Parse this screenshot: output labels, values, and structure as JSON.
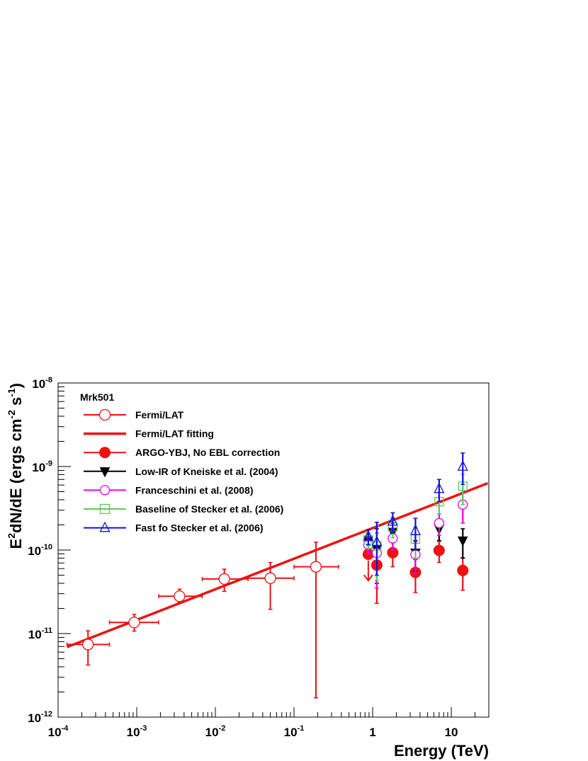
{
  "chart_data": {
    "type": "scatter",
    "title": "",
    "xlabel": "Energy (TeV)",
    "ylabel": {
      "pre": "E",
      "sup1": "2",
      "mid": "dN/dE (ergs cm",
      "sup2": "-2",
      "mid2": " s",
      "sup3": "-1",
      "post": ")"
    },
    "x_scale": "log",
    "y_scale": "log",
    "xlim": [
      0.0001,
      30
    ],
    "ylim": [
      1e-12,
      1e-08
    ],
    "x_ticks": [
      {
        "value": 0.0001,
        "base": "10",
        "exp": "-4"
      },
      {
        "value": 0.001,
        "base": "10",
        "exp": "-3"
      },
      {
        "value": 0.01,
        "base": "10",
        "exp": "-2"
      },
      {
        "value": 0.1,
        "base": "10",
        "exp": "-1"
      },
      {
        "value": 1,
        "base": "1",
        "exp": ""
      },
      {
        "value": 10,
        "base": "10",
        "exp": ""
      }
    ],
    "y_ticks": [
      {
        "value": 1e-12,
        "base": "10",
        "exp": "-12"
      },
      {
        "value": 1e-11,
        "base": "10",
        "exp": "-11"
      },
      {
        "value": 1e-10,
        "base": "10",
        "exp": "-10"
      },
      {
        "value": 1e-09,
        "base": "10",
        "exp": "-9"
      },
      {
        "value": 1e-08,
        "base": "10",
        "exp": "-8"
      }
    ],
    "legend_title": "Mrk501",
    "legend_position": "top-left",
    "grid": false,
    "series": [
      {
        "name": "Fermi/LAT",
        "style": "open-circle",
        "color": "#ee1111",
        "points": [
          {
            "x": 0.00024,
            "y": 7.4e-12,
            "xlo": 0.00013,
            "xhi": 0.00045,
            "ylo": 4.2e-12,
            "yhi": 1.08e-11
          },
          {
            "x": 0.00093,
            "y": 1.36e-11,
            "xlo": 0.00045,
            "xhi": 0.0019,
            "ylo": 1.07e-11,
            "yhi": 1.7e-11
          },
          {
            "x": 0.0035,
            "y": 2.8e-11,
            "xlo": 0.0019,
            "xhi": 0.0068,
            "ylo": 2.38e-11,
            "yhi": 3.4e-11
          },
          {
            "x": 0.013,
            "y": 4.5e-11,
            "xlo": 0.0068,
            "xhi": 0.026,
            "ylo": 3.2e-11,
            "yhi": 5.9e-11
          },
          {
            "x": 0.05,
            "y": 4.6e-11,
            "xlo": 0.026,
            "xhi": 0.1,
            "ylo": 1.95e-11,
            "yhi": 7.1e-11
          },
          {
            "x": 0.19,
            "y": 6.3e-11,
            "xlo": 0.1,
            "xhi": 0.37,
            "ylo": 1.7e-12,
            "yhi": 1.24e-10
          }
        ]
      },
      {
        "name": "Fermi/LAT fitting",
        "style": "line",
        "color": "#ee1111",
        "line": [
          {
            "x": 0.00013,
            "y": 6.9e-12
          },
          {
            "x": 29,
            "y": 6.3e-10
          }
        ]
      },
      {
        "name": "ARGO-YBJ, No EBL correction",
        "style": "filled-circle",
        "color": "#ee1111",
        "points": [
          {
            "x": 0.88,
            "y": 8.9e-11,
            "upper_limit": 7.5e-11,
            "upper_limit_to": 4.3e-11
          },
          {
            "x": 1.13,
            "y": 6.6e-11,
            "ylo": 2.3e-11,
            "yhi": 1.05e-10
          },
          {
            "x": 1.8,
            "y": 9.3e-11,
            "ylo": 6.3e-11,
            "yhi": 1.23e-10
          },
          {
            "x": 3.5,
            "y": 5.4e-11,
            "ylo": 3.1e-11,
            "yhi": 7.7e-11
          },
          {
            "x": 7,
            "y": 9.9e-11,
            "ylo": 7.1e-11,
            "yhi": 1.27e-10
          },
          {
            "x": 14,
            "y": 5.7e-11,
            "ylo": 3.3e-11,
            "yhi": 8.1e-11
          }
        ]
      },
      {
        "name": "Low-IR of Kneiske et al. (2004)",
        "style": "filled-triangle-down",
        "color": "#000000",
        "points": [
          {
            "x": 0.88,
            "y": 1.3e-10,
            "ylo": 1.05e-10,
            "yhi": 1.55e-10
          },
          {
            "x": 1.13,
            "y": 1.03e-10,
            "ylo": 4e-11,
            "yhi": 1.8e-10
          },
          {
            "x": 1.8,
            "y": 1.65e-10,
            "ylo": 1.22e-10,
            "yhi": 2.1e-10
          },
          {
            "x": 3.5,
            "y": 9.3e-11,
            "ylo": 5.6e-11,
            "yhi": 1.3e-10
          },
          {
            "x": 7,
            "y": 1.8e-10,
            "ylo": 1.3e-10,
            "yhi": 2.35e-10
          },
          {
            "x": 14,
            "y": 1.3e-10,
            "ylo": 8e-11,
            "yhi": 1.8e-10
          }
        ]
      },
      {
        "name": "Franceschini et al. (2008)",
        "style": "open-circle",
        "color": "#ee00ee",
        "points": [
          {
            "x": 0.88,
            "y": 1.15e-10,
            "ylo": 9e-11,
            "yhi": 1.4e-10
          },
          {
            "x": 1.13,
            "y": 9.2e-11,
            "ylo": 3.5e-11,
            "yhi": 1.6e-10
          },
          {
            "x": 1.8,
            "y": 1.38e-10,
            "ylo": 1e-10,
            "yhi": 1.8e-10
          },
          {
            "x": 3.5,
            "y": 8.8e-11,
            "ylo": 5.3e-11,
            "yhi": 1.25e-10
          },
          {
            "x": 7,
            "y": 2.1e-10,
            "ylo": 1.5e-10,
            "yhi": 2.7e-10
          },
          {
            "x": 14,
            "y": 3.5e-10,
            "ylo": 2.1e-10,
            "yhi": 4.9e-10
          }
        ]
      },
      {
        "name": "Baseline of Stecker et al. (2006)",
        "style": "open-square",
        "color": "#55cc55",
        "points": [
          {
            "x": 0.88,
            "y": 1.32e-10,
            "ylo": 1.05e-10,
            "yhi": 1.6e-10
          },
          {
            "x": 1.13,
            "y": 1.12e-10,
            "ylo": 4.3e-11,
            "yhi": 1.95e-10
          },
          {
            "x": 1.8,
            "y": 1.9e-10,
            "ylo": 1.4e-10,
            "yhi": 2.45e-10
          },
          {
            "x": 3.5,
            "y": 1.35e-10,
            "ylo": 8e-11,
            "yhi": 1.9e-10
          },
          {
            "x": 7,
            "y": 3.8e-10,
            "ylo": 2.7e-10,
            "yhi": 4.9e-10
          },
          {
            "x": 14,
            "y": 5.8e-10,
            "ylo": 3.5e-10,
            "yhi": 8.1e-10
          }
        ]
      },
      {
        "name": "Fast fo Stecker et al. (2006)",
        "style": "open-triangle-up",
        "color": "#1111dd",
        "points": [
          {
            "x": 0.88,
            "y": 1.45e-10,
            "ylo": 1.15e-10,
            "yhi": 1.75e-10
          },
          {
            "x": 1.13,
            "y": 1.25e-10,
            "ylo": 5e-11,
            "yhi": 2.15e-10
          },
          {
            "x": 1.8,
            "y": 2.2e-10,
            "ylo": 1.6e-10,
            "yhi": 2.8e-10
          },
          {
            "x": 3.5,
            "y": 1.7e-10,
            "ylo": 1e-10,
            "yhi": 2.4e-10
          },
          {
            "x": 7,
            "y": 5.4e-10,
            "ylo": 3.8e-10,
            "yhi": 7e-10
          },
          {
            "x": 14,
            "y": 1e-09,
            "ylo": 6.1e-10,
            "yhi": 1.45e-09
          }
        ]
      }
    ]
  }
}
